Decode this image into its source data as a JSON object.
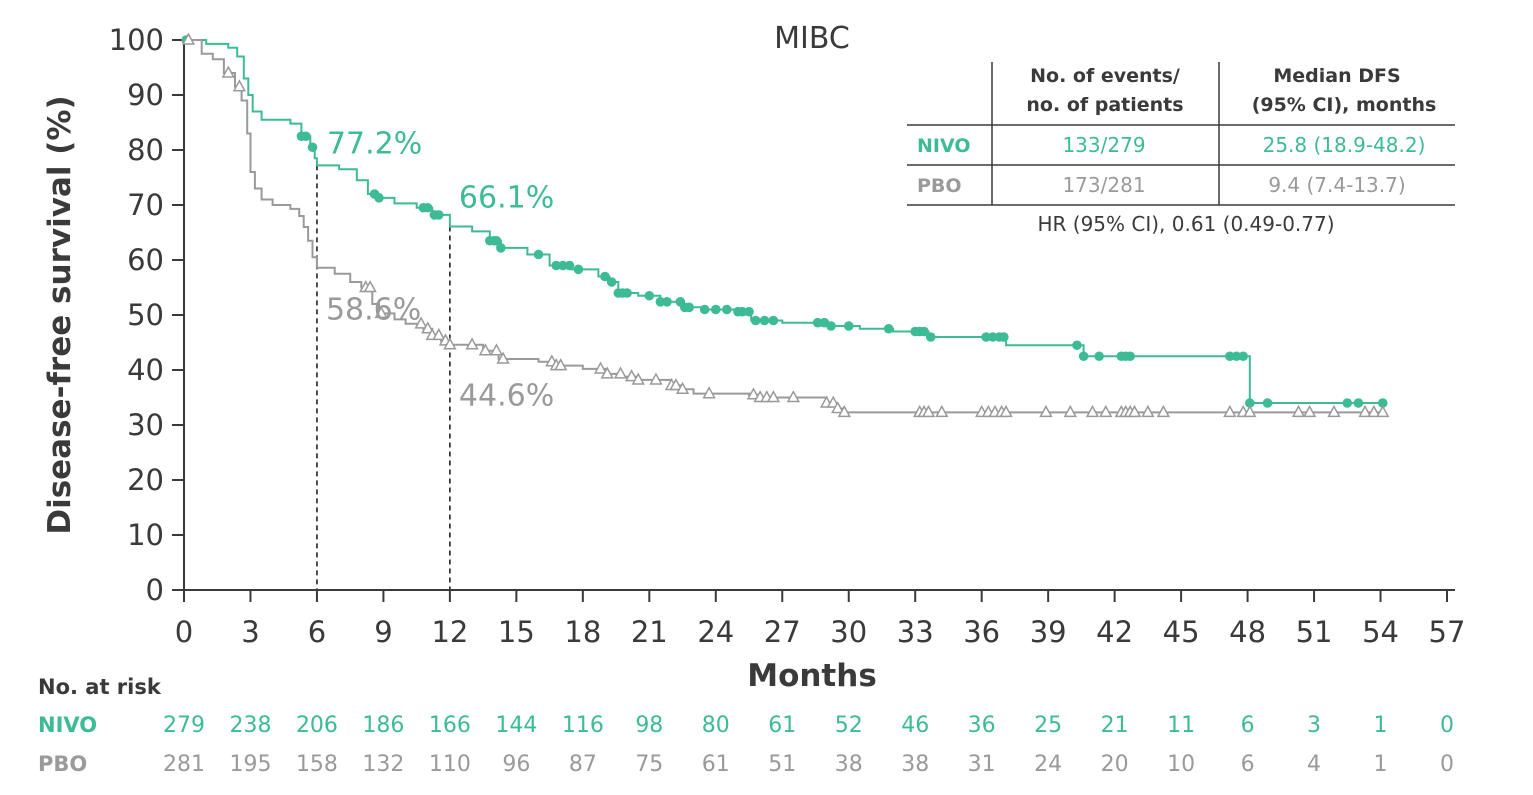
{
  "colors": {
    "nivo": "#3dbb94",
    "pbo": "#9a9a9a",
    "axis": "#3a3a3a",
    "text": "#3a3a3a"
  },
  "chart_data": {
    "type": "line",
    "subtype": "kaplan-meier",
    "title": "MIBC",
    "xlabel": "Months",
    "ylabel": "Disease-free survival (%)",
    "xlim": [
      0,
      57
    ],
    "ylim": [
      0,
      100
    ],
    "x_ticks": [
      "0",
      "3",
      "6",
      "9",
      "12",
      "15",
      "18",
      "21",
      "24",
      "27",
      "30",
      "33",
      "36",
      "39",
      "42",
      "45",
      "48",
      "51",
      "54",
      "57"
    ],
    "y_ticks": [
      "0",
      "10",
      "20",
      "30",
      "40",
      "50",
      "60",
      "70",
      "80",
      "90",
      "100"
    ],
    "reference_lines_x": [
      6,
      12
    ],
    "series": [
      {
        "name": "NIVO",
        "color": "#3dbb94",
        "marker": "circle",
        "steps": [
          [
            0,
            100
          ],
          [
            1,
            99.3
          ],
          [
            2,
            98.6
          ],
          [
            2.4,
            97
          ],
          [
            2.7,
            93
          ],
          [
            2.9,
            90
          ],
          [
            3.1,
            87
          ],
          [
            3.5,
            85.5
          ],
          [
            4.8,
            84.8
          ],
          [
            5.3,
            82.5
          ],
          [
            5.7,
            80.5
          ],
          [
            5.9,
            78.5
          ],
          [
            6,
            77.2
          ],
          [
            7,
            76.5
          ],
          [
            7.8,
            74.5
          ],
          [
            8.3,
            72
          ],
          [
            8.8,
            71.3
          ],
          [
            9.5,
            70.3
          ],
          [
            10.5,
            69.5
          ],
          [
            11.2,
            68.2
          ],
          [
            12,
            66.1
          ],
          [
            13,
            65.2
          ],
          [
            13.8,
            63.5
          ],
          [
            14.3,
            62.2
          ],
          [
            15.5,
            61
          ],
          [
            16.5,
            59
          ],
          [
            17.5,
            58.3
          ],
          [
            18.7,
            57
          ],
          [
            19.2,
            56
          ],
          [
            19.6,
            54
          ],
          [
            20.5,
            53.5
          ],
          [
            21.5,
            52.4
          ],
          [
            22.5,
            51.4
          ],
          [
            23.5,
            51
          ],
          [
            25,
            50.6
          ],
          [
            25.6,
            49
          ],
          [
            27,
            48.6
          ],
          [
            29,
            48
          ],
          [
            30.5,
            47.5
          ],
          [
            32,
            47
          ],
          [
            33.6,
            46
          ],
          [
            36.3,
            46
          ],
          [
            37.1,
            44.5
          ],
          [
            40.6,
            42.5
          ],
          [
            44,
            42.5
          ],
          [
            48.1,
            34
          ],
          [
            54.2,
            34
          ]
        ],
        "censored": [
          0.1,
          5.3,
          5.5,
          5.8,
          8.6,
          8.8,
          10.8,
          11.0,
          11.3,
          11.5,
          13.8,
          14.0,
          14.1,
          14.3,
          16.0,
          16.8,
          17.1,
          17.4,
          17.8,
          19.0,
          19.3,
          19.6,
          19.8,
          20.0,
          21.0,
          21.5,
          21.8,
          22.4,
          22.6,
          22.8,
          23.5,
          24.0,
          24.5,
          25.0,
          25.2,
          25.5,
          25.8,
          26.2,
          26.6,
          28.6,
          28.9,
          29.2,
          30.0,
          31.8,
          33.0,
          33.2,
          33.4,
          33.7,
          36.2,
          36.5,
          36.8,
          37.0,
          40.3,
          40.6,
          41.3,
          42.3,
          42.5,
          42.7,
          47.2,
          47.5,
          47.8,
          48.1,
          48.9,
          52.5,
          53.0,
          54.1
        ],
        "landmarks": [
          {
            "x": 6,
            "y": 77.2,
            "label": "77.2%"
          },
          {
            "x": 12,
            "y": 66.1,
            "label": "66.1%"
          }
        ]
      },
      {
        "name": "PBO",
        "color": "#9a9a9a",
        "marker": "triangle",
        "steps": [
          [
            0,
            100
          ],
          [
            0.8,
            97.5
          ],
          [
            1.3,
            96.5
          ],
          [
            1.8,
            94
          ],
          [
            2.3,
            91.5
          ],
          [
            2.6,
            89
          ],
          [
            2.85,
            83
          ],
          [
            3.0,
            76
          ],
          [
            3.2,
            73
          ],
          [
            3.5,
            71
          ],
          [
            4,
            70
          ],
          [
            4.8,
            69.3
          ],
          [
            5.2,
            68
          ],
          [
            5.4,
            66
          ],
          [
            5.6,
            63.5
          ],
          [
            5.8,
            60.5
          ],
          [
            6,
            58.6
          ],
          [
            6.8,
            57.5
          ],
          [
            7.5,
            56
          ],
          [
            8,
            55
          ],
          [
            8.5,
            52
          ],
          [
            8.8,
            50.3
          ],
          [
            9.5,
            49.2
          ],
          [
            10,
            48.4
          ],
          [
            10.8,
            47.5
          ],
          [
            11.2,
            46.3
          ],
          [
            11.6,
            45.3
          ],
          [
            12,
            44.6
          ],
          [
            13.5,
            43.5
          ],
          [
            14.2,
            42
          ],
          [
            16,
            41.5
          ],
          [
            16.8,
            40.8
          ],
          [
            18,
            40.2
          ],
          [
            19,
            39.3
          ],
          [
            19.8,
            38.8
          ],
          [
            20.5,
            38.2
          ],
          [
            22,
            37.2
          ],
          [
            22.5,
            36.5
          ],
          [
            23,
            35.7
          ],
          [
            25.5,
            35.5
          ],
          [
            26,
            35
          ],
          [
            29,
            34
          ],
          [
            29.4,
            33
          ],
          [
            29.7,
            32.3
          ],
          [
            54.2,
            32.3
          ]
        ],
        "censored": [
          0.2,
          2.0,
          2.5,
          8.2,
          8.4,
          8.9,
          10.7,
          11.0,
          11.2,
          11.5,
          11.8,
          12.0,
          13.0,
          13.6,
          14.1,
          14.4,
          16.6,
          16.8,
          17.0,
          18.8,
          19.1,
          19.7,
          20.2,
          20.5,
          21.3,
          22.0,
          22.2,
          22.5,
          23.7,
          25.7,
          26.0,
          26.3,
          26.6,
          27.5,
          29.0,
          29.3,
          29.5,
          29.8,
          33.2,
          33.4,
          33.6,
          34.2,
          36.0,
          36.3,
          36.6,
          36.9,
          37.1,
          38.9,
          40.0,
          41.0,
          41.6,
          42.3,
          42.5,
          42.7,
          42.9,
          43.5,
          44.2,
          47.2,
          47.8,
          48.1,
          50.3,
          50.8,
          51.9,
          53.3,
          53.7,
          54.1
        ],
        "landmarks": [
          {
            "x": 6,
            "y": 58.6,
            "label": "58.6%"
          },
          {
            "x": 12,
            "y": 44.6,
            "label": "44.6%"
          }
        ]
      }
    ],
    "summary_table": {
      "headers": [
        [
          "",
          ""
        ],
        [
          "No. of events/",
          "no. of patients"
        ],
        [
          "Median DFS",
          "(95% CI), months"
        ]
      ],
      "rows": [
        {
          "label": "NIVO",
          "events": "133/279",
          "median": "25.8 (18.9-48.2)"
        },
        {
          "label": "PBO",
          "events": "173/281",
          "median": "9.4 (7.4-13.7)"
        }
      ],
      "hr_text": "HR (95% CI), 0.61 (0.49-0.77)"
    },
    "at_risk": {
      "title": "No. at risk",
      "rows": [
        {
          "label": "NIVO",
          "values": [
            "279",
            "238",
            "206",
            "186",
            "166",
            "144",
            "116",
            "98",
            "80",
            "61",
            "52",
            "46",
            "36",
            "25",
            "21",
            "11",
            "6",
            "3",
            "1",
            "0"
          ]
        },
        {
          "label": "PBO",
          "values": [
            "281",
            "195",
            "158",
            "132",
            "110",
            "96",
            "87",
            "75",
            "61",
            "51",
            "38",
            "38",
            "31",
            "24",
            "20",
            "10",
            "6",
            "4",
            "1",
            "0"
          ]
        }
      ]
    }
  }
}
